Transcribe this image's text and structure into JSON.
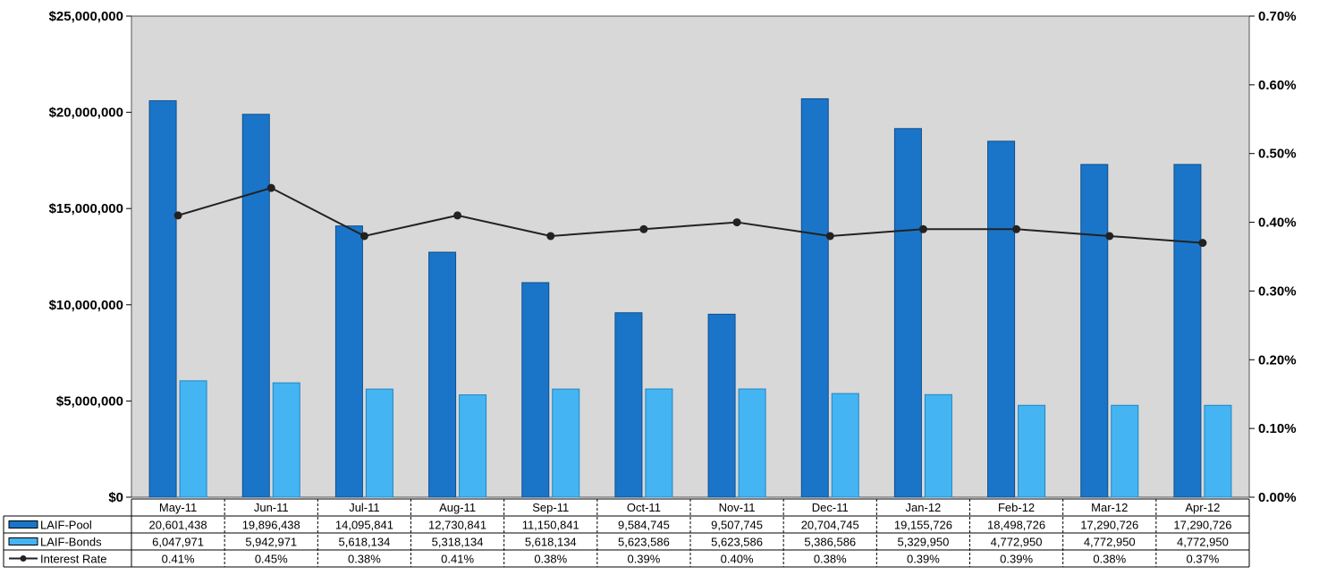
{
  "chart_data": {
    "type": "bar",
    "categories": [
      "May-11",
      "Jun-11",
      "Jul-11",
      "Aug-11",
      "Sep-11",
      "Oct-11",
      "Nov-11",
      "Dec-11",
      "Jan-12",
      "Feb-12",
      "Mar-12",
      "Apr-12"
    ],
    "series": [
      {
        "name": "LAIF-Pool",
        "type": "bar",
        "axis": "left",
        "color": "#1a75c8",
        "values": [
          20601438,
          19896438,
          14095841,
          12730841,
          11150841,
          9584745,
          9507745,
          20704745,
          19155726,
          18498726,
          17290726,
          17290726
        ],
        "labels": [
          "20,601,438",
          "19,896,438",
          "14,095,841",
          "12,730,841",
          "11,150,841",
          "9,584,745",
          "9,507,745",
          "20,704,745",
          "19,155,726",
          "18,498,726",
          "17,290,726",
          "17,290,726"
        ]
      },
      {
        "name": "LAIF-Bonds",
        "type": "bar",
        "axis": "left",
        "color": "#45b4f2",
        "values": [
          6047971,
          5942971,
          5618134,
          5318134,
          5618134,
          5623586,
          5623586,
          5386586,
          5329950,
          4772950,
          4772950,
          4772950
        ],
        "labels": [
          "6,047,971",
          "5,942,971",
          "5,618,134",
          "5,318,134",
          "5,618,134",
          "5,623,586",
          "5,623,586",
          "5,386,586",
          "5,329,950",
          "4,772,950",
          "4,772,950",
          "4,772,950"
        ]
      },
      {
        "name": "Interest Rate",
        "type": "line",
        "axis": "right",
        "color": "#222222",
        "values": [
          0.41,
          0.45,
          0.38,
          0.41,
          0.38,
          0.39,
          0.4,
          0.38,
          0.39,
          0.39,
          0.38,
          0.37
        ],
        "labels": [
          "0.41%",
          "0.45%",
          "0.38%",
          "0.41%",
          "0.38%",
          "0.39%",
          "0.40%",
          "0.38%",
          "0.39%",
          "0.39%",
          "0.38%",
          "0.37%"
        ]
      }
    ],
    "y_left": {
      "ylim": [
        0,
        25000000
      ],
      "ticks": [
        0,
        5000000,
        10000000,
        15000000,
        20000000,
        25000000
      ],
      "tick_labels": [
        "$0",
        "$5,000,000",
        "$10,000,000",
        "$15,000,000",
        "$20,000,000",
        "$25,000,000"
      ]
    },
    "y_right": {
      "ylim": [
        0,
        0.7
      ],
      "ticks": [
        0,
        0.1,
        0.2,
        0.3,
        0.4,
        0.5,
        0.6,
        0.7
      ],
      "tick_labels": [
        "0.00%",
        "0.10%",
        "0.20%",
        "0.30%",
        "0.40%",
        "0.50%",
        "0.60%",
        "0.70%"
      ]
    },
    "title": "",
    "legend_placement": "data-table-left",
    "grid": false,
    "data_table": true,
    "plot_background": "#d8d8d8"
  }
}
